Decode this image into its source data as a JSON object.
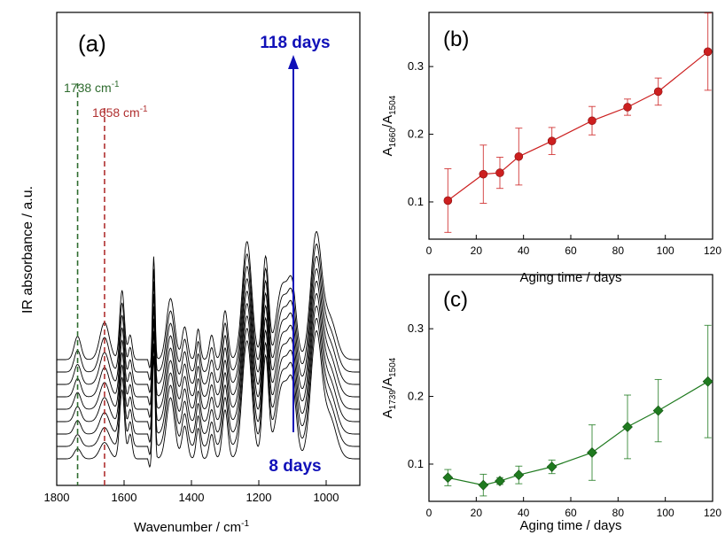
{
  "chart_data": [
    {
      "panel": "(a)",
      "type": "line",
      "xlabel": "Wavenumber / cm",
      "xlabel_sup": "-1",
      "ylabel": "IR absorbance / a.u.",
      "xlim": [
        1800,
        900
      ],
      "xticks": [
        "1800",
        "1600",
        "1400",
        "1200",
        "1000"
      ],
      "x_ticks_values": [
        1800,
        1600,
        1400,
        1200,
        1000
      ],
      "grid": false,
      "spectra_count": 9,
      "reference_lines": [
        {
          "x": 1738,
          "label": "1738 cm",
          "sup": "-1",
          "color": "#2e6b2e"
        },
        {
          "x": 1658,
          "label": "1658 cm",
          "sup": "-1",
          "color": "#b03030"
        }
      ],
      "arrow": {
        "start_label": "8 days",
        "end_label": "118 days",
        "color": "#1010b8"
      }
    },
    {
      "panel": "(b)",
      "type": "scatter",
      "xlabel": "Aging time / days",
      "ylabel_main": "A",
      "ylabel_sub1": "1660",
      "ylabel_slash": "/A",
      "ylabel_sub2": "1504",
      "xlim": [
        0,
        120
      ],
      "ylim": [
        0.045,
        0.38
      ],
      "xticks": [
        0,
        20,
        40,
        60,
        80,
        100,
        120
      ],
      "yticks": [
        "0.1",
        "0.2",
        "0.3"
      ],
      "ytick_values": [
        0.1,
        0.2,
        0.3
      ],
      "color": "#cc1f1f",
      "marker": "circle",
      "x": [
        8,
        23,
        30,
        38,
        52,
        69,
        84,
        97,
        118
      ],
      "y": [
        0.102,
        0.141,
        0.143,
        0.167,
        0.19,
        0.22,
        0.24,
        0.263,
        0.322
      ],
      "err": [
        0.047,
        0.043,
        0.023,
        0.042,
        0.02,
        0.021,
        0.012,
        0.02,
        0.057
      ]
    },
    {
      "panel": "(c)",
      "type": "scatter",
      "xlabel": "Aging time / days",
      "ylabel_main": "A",
      "ylabel_sub1": "1739",
      "ylabel_slash": "/A",
      "ylabel_sub2": "1504",
      "xlim": [
        0,
        120
      ],
      "ylim": [
        0.045,
        0.38
      ],
      "xticks": [
        0,
        20,
        40,
        60,
        80,
        100,
        120
      ],
      "yticks": [
        "0.1",
        "0.2",
        "0.3"
      ],
      "ytick_values": [
        0.1,
        0.2,
        0.3
      ],
      "color": "#1f7a1f",
      "marker": "diamond",
      "x": [
        8,
        23,
        30,
        38,
        52,
        69,
        84,
        97,
        118
      ],
      "y": [
        0.08,
        0.069,
        0.075,
        0.084,
        0.096,
        0.117,
        0.155,
        0.179,
        0.222
      ],
      "err": [
        0.012,
        0.016,
        0.005,
        0.013,
        0.01,
        0.041,
        0.047,
        0.046,
        0.083
      ]
    }
  ]
}
